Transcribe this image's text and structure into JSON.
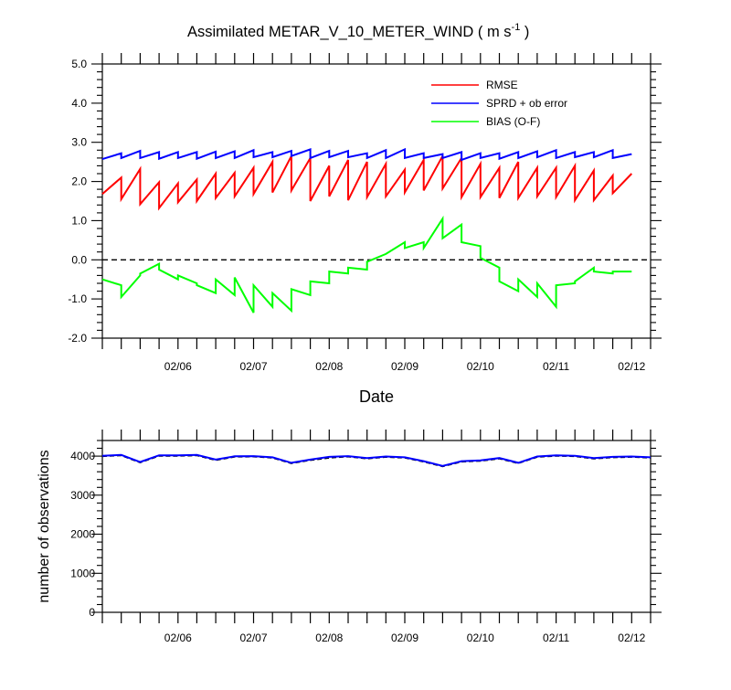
{
  "title": {
    "main": "Assimilated METAR_V_10_METER_WIND ( m s",
    "exponent": "-1",
    "close": " )"
  },
  "x_axis": {
    "label": "Date",
    "tick_labels": [
      "02/06",
      "02/07",
      "02/08",
      "02/09",
      "02/10",
      "02/11",
      "02/12"
    ]
  },
  "colors": {
    "rmse": "#ff0000",
    "spread": "#0000ff",
    "bias": "#00ff00",
    "zero_line": "#000000",
    "obs_used": "#0000ff",
    "obs_possible": "#000000"
  },
  "chart_data": [
    {
      "type": "line",
      "title": "Assimilated METAR_V_10_METER_WIND ( m s-1 )",
      "xlabel": "Date",
      "ylabel": "",
      "x": [
        5.25,
        5.5,
        5.75,
        6.0,
        6.25,
        6.5,
        6.75,
        7.0,
        7.25,
        7.5,
        7.75,
        8.0,
        8.25,
        8.5,
        8.75,
        9.0,
        9.25,
        9.5,
        9.75,
        10.0,
        10.25,
        10.5,
        10.75,
        11.0,
        11.25,
        11.5,
        11.75,
        12.0
      ],
      "x_tick_values": [
        6,
        7,
        8,
        9,
        10,
        11,
        12
      ],
      "x_tick_labels": [
        "02/06",
        "02/07",
        "02/08",
        "02/09",
        "02/10",
        "02/11",
        "02/12"
      ],
      "xlim": [
        5.0,
        12.25
      ],
      "ylim": [
        -2.0,
        5.0
      ],
      "y_ticks": [
        -2.0,
        -1.0,
        0.0,
        1.0,
        2.0,
        3.0,
        4.0,
        5.0
      ],
      "y_tick_labels": [
        "-2.0",
        "-1.0",
        "0.0",
        "1.0",
        "2.0",
        "3.0",
        "4.0",
        "5.0"
      ],
      "reference_line": 0.0,
      "legend_position": "top-right",
      "series": [
        {
          "name": "RMSE",
          "pairs": [
            [
              1.68,
              2.1
            ],
            [
              1.55,
              2.32
            ],
            [
              1.42,
              1.98
            ],
            [
              1.32,
              1.95
            ],
            [
              1.47,
              2.05
            ],
            [
              1.5,
              2.2
            ],
            [
              1.58,
              2.22
            ],
            [
              1.62,
              2.35
            ],
            [
              1.68,
              2.5
            ],
            [
              1.72,
              2.65
            ],
            [
              1.77,
              2.6
            ],
            [
              1.5,
              2.4
            ],
            [
              1.62,
              2.55
            ],
            [
              1.52,
              2.5
            ],
            [
              1.6,
              2.45
            ],
            [
              1.62,
              2.3
            ],
            [
              1.72,
              2.55
            ],
            [
              1.77,
              2.65
            ],
            [
              1.82,
              2.6
            ],
            [
              1.6,
              2.45
            ],
            [
              1.6,
              2.35
            ],
            [
              1.58,
              2.5
            ],
            [
              1.58,
              2.35
            ],
            [
              1.62,
              2.35
            ],
            [
              1.6,
              2.4
            ],
            [
              1.52,
              2.28
            ],
            [
              1.52,
              2.15
            ],
            [
              1.7,
              2.2
            ]
          ]
        },
        {
          "name": "SPRD + ob error",
          "pairs": [
            [
              2.57,
              2.72
            ],
            [
              2.6,
              2.78
            ],
            [
              2.6,
              2.75
            ],
            [
              2.58,
              2.75
            ],
            [
              2.6,
              2.75
            ],
            [
              2.58,
              2.76
            ],
            [
              2.6,
              2.77
            ],
            [
              2.6,
              2.8
            ],
            [
              2.62,
              2.75
            ],
            [
              2.62,
              2.78
            ],
            [
              2.65,
              2.82
            ],
            [
              2.6,
              2.78
            ],
            [
              2.62,
              2.78
            ],
            [
              2.62,
              2.72
            ],
            [
              2.6,
              2.8
            ],
            [
              2.6,
              2.82
            ],
            [
              2.6,
              2.72
            ],
            [
              2.6,
              2.7
            ],
            [
              2.6,
              2.75
            ],
            [
              2.55,
              2.72
            ],
            [
              2.6,
              2.72
            ],
            [
              2.58,
              2.75
            ],
            [
              2.6,
              2.77
            ],
            [
              2.62,
              2.8
            ],
            [
              2.6,
              2.75
            ],
            [
              2.62,
              2.75
            ],
            [
              2.62,
              2.8
            ],
            [
              2.6,
              2.7
            ]
          ]
        },
        {
          "name": "BIAS (O-F)",
          "pairs": [
            [
              -0.5,
              -0.65
            ],
            [
              -0.95,
              -0.4
            ],
            [
              -0.35,
              -0.1
            ],
            [
              -0.25,
              -0.5
            ],
            [
              -0.4,
              -0.6
            ],
            [
              -0.65,
              -0.85
            ],
            [
              -0.5,
              -0.9
            ],
            [
              -0.45,
              -1.35
            ],
            [
              -0.65,
              -1.2
            ],
            [
              -0.85,
              -1.3
            ],
            [
              -0.75,
              -0.9
            ],
            [
              -0.55,
              -0.6
            ],
            [
              -0.3,
              -0.35
            ],
            [
              -0.2,
              -0.25
            ],
            [
              -0.05,
              0.15
            ],
            [
              0.15,
              0.45
            ],
            [
              0.3,
              0.45
            ],
            [
              0.3,
              1.05
            ],
            [
              0.55,
              0.9
            ],
            [
              0.45,
              0.35
            ],
            [
              0.05,
              -0.2
            ],
            [
              -0.55,
              -0.8
            ],
            [
              -0.5,
              -0.95
            ],
            [
              -0.6,
              -1.2
            ],
            [
              -0.65,
              -0.6
            ],
            [
              -0.55,
              -0.2
            ],
            [
              -0.3,
              -0.35
            ],
            [
              -0.3,
              -0.3
            ]
          ]
        }
      ]
    },
    {
      "type": "line",
      "title": "",
      "xlabel": "",
      "ylabel": "number of observations",
      "x": [
        5.0,
        5.25,
        5.5,
        5.75,
        6.0,
        6.25,
        6.5,
        6.75,
        7.0,
        7.25,
        7.5,
        7.75,
        8.0,
        8.25,
        8.5,
        8.75,
        9.0,
        9.25,
        9.5,
        9.75,
        10.0,
        10.25,
        10.5,
        10.75,
        11.0,
        11.25,
        11.5,
        11.75,
        12.0,
        12.25
      ],
      "x_tick_values": [
        6,
        7,
        8,
        9,
        10,
        11,
        12
      ],
      "x_tick_labels": [
        "02/06",
        "02/07",
        "02/08",
        "02/09",
        "02/10",
        "02/11",
        "02/12"
      ],
      "xlim": [
        5.0,
        12.25
      ],
      "ylim": [
        0,
        4400
      ],
      "y_ticks": [
        0,
        1000,
        2000,
        3000,
        4000
      ],
      "y_tick_labels": [
        "0",
        "1000",
        "2000",
        "3000",
        "4000"
      ],
      "series": [
        {
          "values": [
            4000,
            4020,
            3840,
            4010,
            4010,
            4020,
            3900,
            3985,
            3990,
            3960,
            3820,
            3900,
            3960,
            3990,
            3940,
            3980,
            3960,
            3860,
            3740,
            3860,
            3880,
            3940,
            3820,
            3980,
            4010,
            4000,
            3940,
            3970,
            3980,
            3960
          ]
        },
        {
          "values": [
            4010,
            4030,
            3850,
            4020,
            4020,
            4030,
            3910,
            3995,
            4000,
            3970,
            3830,
            3910,
            3980,
            4000,
            3950,
            3990,
            3970,
            3870,
            3750,
            3870,
            3890,
            3950,
            3830,
            3990,
            4020,
            4010,
            3950,
            3980,
            3990,
            3970
          ]
        }
      ]
    }
  ]
}
